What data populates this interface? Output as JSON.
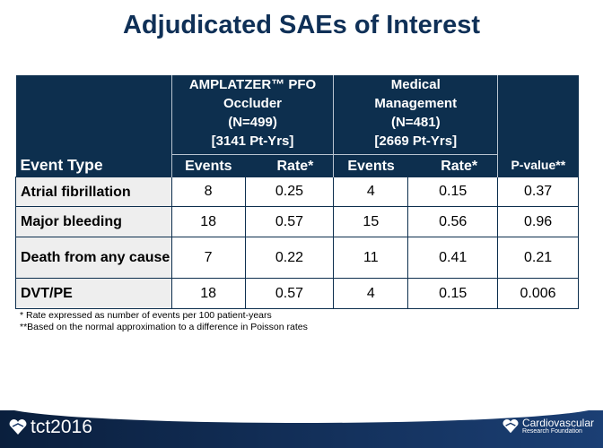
{
  "title": "Adjudicated SAEs of Interest",
  "table": {
    "groups": [
      {
        "lines": [
          "AMPLATZER™ PFO",
          "Occluder",
          "(N=499)",
          "[3141 Pt-Yrs]"
        ]
      },
      {
        "lines": [
          "Medical",
          "Management",
          "(N=481)",
          "[2669 Pt-Yrs]"
        ]
      }
    ],
    "col_event_type": "Event Type",
    "col_events": "Events",
    "col_rate": "Rate*",
    "col_pvalue": "P-value**",
    "rows": [
      {
        "event": "Atrial fibrillation",
        "a_events": "8",
        "a_rate": "0.25",
        "m_events": "4",
        "m_rate": "0.15",
        "p": "0.37"
      },
      {
        "event": "Major bleeding",
        "a_events": "18",
        "a_rate": "0.57",
        "m_events": "15",
        "m_rate": "0.56",
        "p": "0.96"
      },
      {
        "event": "Death from any cause",
        "a_events": "7",
        "a_rate": "0.22",
        "m_events": "11",
        "m_rate": "0.41",
        "p": "0.21"
      },
      {
        "event": "DVT/PE",
        "a_events": "18",
        "a_rate": "0.57",
        "m_events": "4",
        "m_rate": "0.15",
        "p": "0.006"
      }
    ]
  },
  "footnotes": [
    "* Rate expressed as number of events per 100 patient-years",
    "**Based on the normal approximation to a difference in Poisson rates"
  ],
  "footer": {
    "left_logo": "tct2016",
    "right_logo_line1": "Cardiovascular",
    "right_logo_line2": "Research Foundation"
  }
}
